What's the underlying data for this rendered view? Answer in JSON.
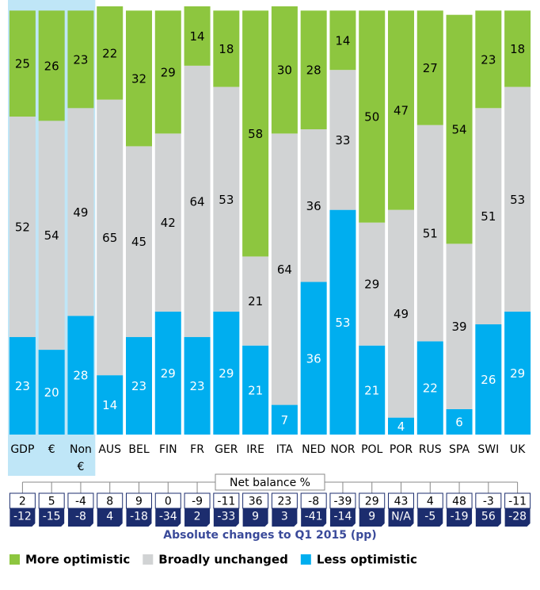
{
  "chart_data": {
    "type": "stacked_bar",
    "categories": [
      "GDP",
      "€",
      "Non €",
      "AUS",
      "BEL",
      "FIN",
      "FR",
      "GER",
      "IRE",
      "ITA",
      "NED",
      "NOR",
      "POL",
      "POR",
      "RUS",
      "SPA",
      "SWI",
      "UK"
    ],
    "highlight_count": 3,
    "series": [
      {
        "name": "Less optimistic",
        "color": "#00aeef",
        "values": [
          23,
          20,
          28,
          14,
          23,
          29,
          23,
          29,
          21,
          7,
          36,
          53,
          21,
          4,
          22,
          6,
          26,
          29
        ]
      },
      {
        "name": "Broadly unchanged",
        "color": "#d1d3d4",
        "values": [
          52,
          54,
          49,
          65,
          45,
          42,
          64,
          53,
          21,
          64,
          36,
          33,
          29,
          49,
          51,
          39,
          51,
          53
        ]
      },
      {
        "name": "More optimistic",
        "color": "#8dc63f",
        "values": [
          25,
          26,
          23,
          22,
          32,
          29,
          14,
          18,
          58,
          30,
          28,
          14,
          50,
          47,
          27,
          54,
          23,
          18
        ]
      }
    ],
    "legend_order": [
      2,
      1,
      0
    ],
    "net_balance": {
      "title": "Net balance %",
      "values": [
        2,
        5,
        -4,
        8,
        9,
        0,
        -9,
        -11,
        36,
        23,
        -8,
        -39,
        29,
        43,
        4,
        48,
        -3,
        -11
      ],
      "changes": [
        -12,
        -15,
        -8,
        4,
        -18,
        -34,
        2,
        -33,
        9,
        3,
        -41,
        -14,
        9,
        "N/A",
        -5,
        -19,
        56,
        -28
      ],
      "changes_label": "Absolute changes to Q1 2015 (pp)"
    }
  }
}
